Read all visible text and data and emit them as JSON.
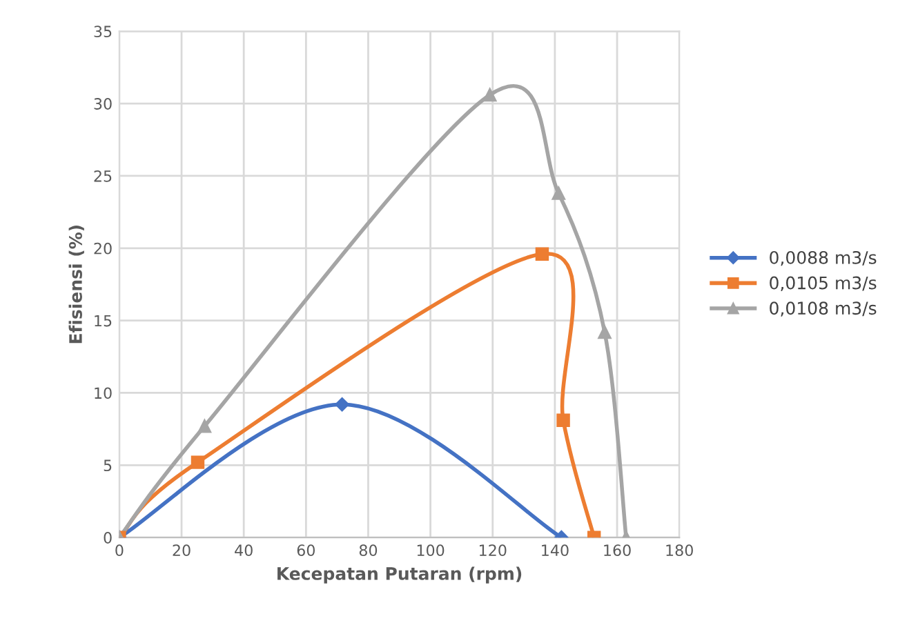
{
  "chart_data": {
    "type": "line",
    "xlabel": "Kecepatan Putaran (rpm)",
    "ylabel": "Efisiensi (%)",
    "series": [
      {
        "name": "0,0088 m3/s",
        "color": "#4472c4",
        "marker": "diamond",
        "x": [
          0,
          71.6,
          142.1
        ],
        "values": [
          0,
          9.2,
          0
        ]
      },
      {
        "name": "0,0105 m3/s",
        "color": "#ed7d31",
        "marker": "square",
        "x": [
          0,
          25.2,
          135.9,
          142.7,
          152.6
        ],
        "values": [
          0,
          5.2,
          19.6,
          8.1,
          0
        ]
      },
      {
        "name": "0,0108 m3/s",
        "color": "#a5a5a5",
        "marker": "triangle",
        "x": [
          0,
          27.4,
          119.1,
          141.2,
          156,
          162.9
        ],
        "values": [
          0,
          7.7,
          30.6,
          23.8,
          14.2,
          0
        ]
      }
    ],
    "xlim": [
      0,
      180
    ],
    "xticks": [
      0,
      20,
      40,
      60,
      80,
      100,
      120,
      140,
      160,
      180
    ],
    "ylim": [
      0,
      35
    ],
    "yticks": [
      0,
      5,
      10,
      15,
      20,
      25,
      30,
      35
    ],
    "grid": true,
    "legend": "right",
    "line_style": "solid"
  }
}
